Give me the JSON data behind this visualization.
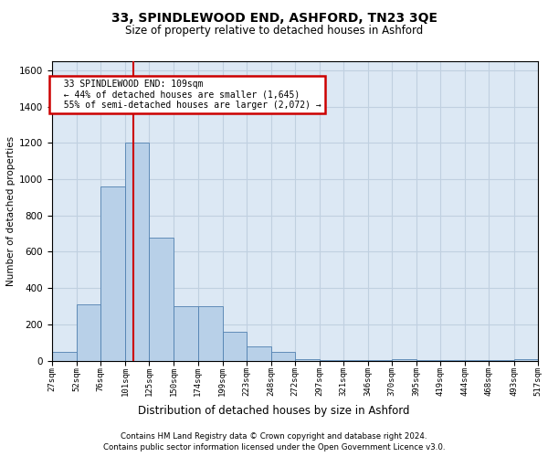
{
  "title1": "33, SPINDLEWOOD END, ASHFORD, TN23 3QE",
  "title2": "Size of property relative to detached houses in Ashford",
  "xlabel": "Distribution of detached houses by size in Ashford",
  "ylabel": "Number of detached properties",
  "footnote1": "Contains HM Land Registry data © Crown copyright and database right 2024.",
  "footnote2": "Contains public sector information licensed under the Open Government Licence v3.0.",
  "annotation_line1": "33 SPINDLEWOOD END: 109sqm",
  "annotation_line2": "← 44% of detached houses are smaller (1,645)",
  "annotation_line3": "55% of semi-detached houses are larger (2,072) →",
  "bar_color": "#b8d0e8",
  "bar_edge_color": "#5080b0",
  "grid_color": "#c0d0e0",
  "background_color": "#dce8f4",
  "marker_line_color": "#cc0000",
  "annotation_box_edge": "#cc0000",
  "bin_edges": [
    27,
    52,
    76,
    101,
    125,
    150,
    174,
    199,
    223,
    248,
    272,
    297,
    321,
    346,
    370,
    395,
    419,
    444,
    468,
    493,
    517
  ],
  "bin_counts": [
    50,
    310,
    960,
    1200,
    680,
    300,
    300,
    160,
    80,
    50,
    10,
    5,
    5,
    5,
    10,
    3,
    3,
    3,
    3,
    10
  ],
  "property_size": 109,
  "ylim": [
    0,
    1650
  ],
  "yticks": [
    0,
    200,
    400,
    600,
    800,
    1000,
    1200,
    1400,
    1600
  ]
}
